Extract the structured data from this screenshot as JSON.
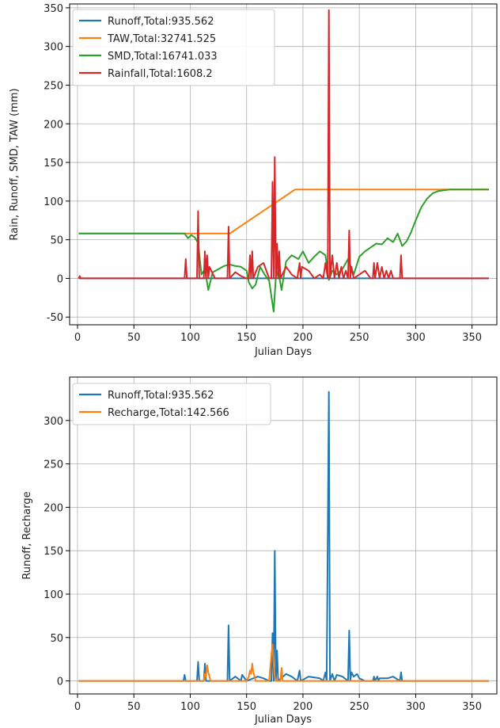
{
  "chart_data": [
    {
      "type": "line",
      "title": "",
      "xlabel": "Julian Days",
      "ylabel": "Rain, Runoff, SMD, TAW (mm)",
      "xlim": [
        -7,
        372
      ],
      "ylim": [
        -60,
        355
      ],
      "xticks": [
        0,
        50,
        100,
        150,
        200,
        250,
        300,
        350
      ],
      "yticks": [
        -50,
        0,
        50,
        100,
        150,
        200,
        250,
        300,
        350
      ],
      "grid": true,
      "legend_position": "top-left",
      "series": [
        {
          "name": "Runoff,Total:935.562",
          "color": "#1f77b4",
          "x": [
            1,
            100,
            200,
            300,
            365
          ],
          "y": [
            0,
            0,
            0,
            0,
            0
          ]
        },
        {
          "name": "TAW,Total:32741.525",
          "color": "#ff7f0e",
          "x": [
            1,
            135,
            193,
            365
          ],
          "y": [
            58,
            58,
            115,
            115
          ]
        },
        {
          "name": "SMD,Total:16741.033",
          "color": "#2ca02c",
          "x": [
            1,
            95,
            98,
            101,
            104,
            107,
            110,
            113,
            116,
            120,
            125,
            130,
            135,
            140,
            145,
            150,
            152,
            155,
            158,
            162,
            166,
            170,
            174,
            176,
            178,
            181,
            185,
            190,
            196,
            200,
            205,
            210,
            215,
            220,
            223,
            226,
            230,
            235,
            240,
            245,
            250,
            255,
            260,
            265,
            270,
            275,
            280,
            284,
            286,
            288,
            292,
            296,
            300,
            305,
            310,
            315,
            320,
            325,
            330,
            340,
            350,
            365
          ],
          "y": [
            58,
            58,
            52,
            56,
            53,
            46,
            5,
            12,
            -15,
            8,
            12,
            16,
            18,
            16,
            15,
            10,
            -5,
            -13,
            -8,
            15,
            5,
            -3,
            -43,
            2,
            10,
            -15,
            22,
            30,
            25,
            35,
            20,
            28,
            35,
            30,
            -2,
            10,
            5,
            12,
            25,
            5,
            28,
            35,
            40,
            45,
            44,
            52,
            47,
            58,
            50,
            42,
            48,
            60,
            75,
            92,
            103,
            110,
            113,
            114,
            115,
            115,
            115,
            115
          ]
        },
        {
          "name": "Rainfall,Total:1608.2",
          "color": "#d62728",
          "x": [
            1,
            2,
            3,
            93,
            95,
            96,
            97,
            104,
            106,
            107,
            108,
            112,
            113,
            114,
            115,
            116,
            117,
            122,
            130,
            133,
            134,
            135,
            140,
            145,
            150,
            152,
            153,
            154,
            155,
            156,
            160,
            165,
            170,
            172,
            173,
            174,
            175,
            176,
            177,
            178,
            179,
            180,
            185,
            190,
            195,
            197,
            198,
            199,
            205,
            210,
            215,
            218,
            220,
            222,
            223,
            224,
            226,
            228,
            230,
            232,
            234,
            236,
            238,
            240,
            241,
            242,
            243,
            245,
            250,
            255,
            260,
            262,
            263,
            264,
            266,
            268,
            270,
            272,
            274,
            276,
            278,
            280,
            284,
            286,
            287,
            288,
            290,
            300,
            320,
            340,
            365
          ],
          "y": [
            0,
            3,
            0,
            0,
            0,
            25,
            0,
            0,
            0,
            87,
            0,
            0,
            35,
            0,
            30,
            0,
            15,
            0,
            0,
            0,
            67,
            0,
            8,
            3,
            0,
            0,
            30,
            0,
            35,
            0,
            15,
            20,
            0,
            0,
            125,
            0,
            157,
            0,
            45,
            0,
            35,
            0,
            15,
            5,
            0,
            20,
            0,
            15,
            10,
            0,
            5,
            0,
            20,
            0,
            347,
            0,
            30,
            0,
            20,
            0,
            15,
            0,
            10,
            0,
            62,
            0,
            15,
            0,
            5,
            10,
            0,
            0,
            20,
            0,
            20,
            0,
            15,
            0,
            10,
            0,
            10,
            0,
            0,
            0,
            30,
            0,
            0,
            0,
            0,
            0,
            0
          ]
        }
      ]
    },
    {
      "type": "line",
      "title": "",
      "xlabel": "Julian Days",
      "ylabel": "Runoff, Recharge",
      "xlim": [
        -7,
        372
      ],
      "ylim": [
        -15,
        350
      ],
      "xticks": [
        0,
        50,
        100,
        150,
        200,
        250,
        300,
        350
      ],
      "yticks": [
        0,
        50,
        100,
        150,
        200,
        250,
        300
      ],
      "grid": true,
      "legend_position": "top-left",
      "series": [
        {
          "name": "Runoff,Total:935.562",
          "color": "#1f77b4",
          "x": [
            1,
            94,
            95,
            96,
            104,
            106,
            107,
            108,
            112,
            113,
            114,
            130,
            133,
            134,
            135,
            140,
            145,
            146,
            150,
            160,
            165,
            170,
            172,
            173,
            174,
            175,
            176,
            177,
            178,
            185,
            190,
            195,
            197,
            198,
            205,
            215,
            218,
            220,
            221,
            223,
            224,
            226,
            228,
            230,
            235,
            240,
            241,
            242,
            243,
            245,
            248,
            250,
            255,
            262,
            263,
            264,
            266,
            267,
            268,
            275,
            280,
            286,
            287,
            288,
            290,
            300,
            365
          ],
          "y": [
            0,
            0,
            7,
            0,
            0,
            0,
            22,
            0,
            0,
            20,
            0,
            0,
            0,
            64,
            0,
            5,
            0,
            7,
            0,
            5,
            3,
            0,
            0,
            55,
            0,
            150,
            0,
            35,
            0,
            8,
            5,
            0,
            12,
            0,
            5,
            3,
            0,
            10,
            0,
            333,
            0,
            8,
            0,
            7,
            5,
            0,
            58,
            0,
            10,
            5,
            8,
            3,
            0,
            0,
            5,
            0,
            5,
            0,
            3,
            3,
            5,
            0,
            10,
            0,
            0,
            0,
            0
          ]
        },
        {
          "name": "Recharge,Total:142.566",
          "color": "#ff7f0e",
          "x": [
            1,
            112,
            113,
            114,
            115,
            116,
            118,
            150,
            152,
            153,
            154,
            155,
            156,
            158,
            170,
            172,
            173,
            174,
            175,
            176,
            180,
            181,
            182,
            190,
            365
          ],
          "y": [
            0,
            0,
            8,
            5,
            18,
            10,
            0,
            0,
            5,
            12,
            8,
            20,
            10,
            0,
            0,
            30,
            42,
            20,
            5,
            0,
            0,
            15,
            0,
            0,
            0
          ]
        }
      ]
    }
  ]
}
